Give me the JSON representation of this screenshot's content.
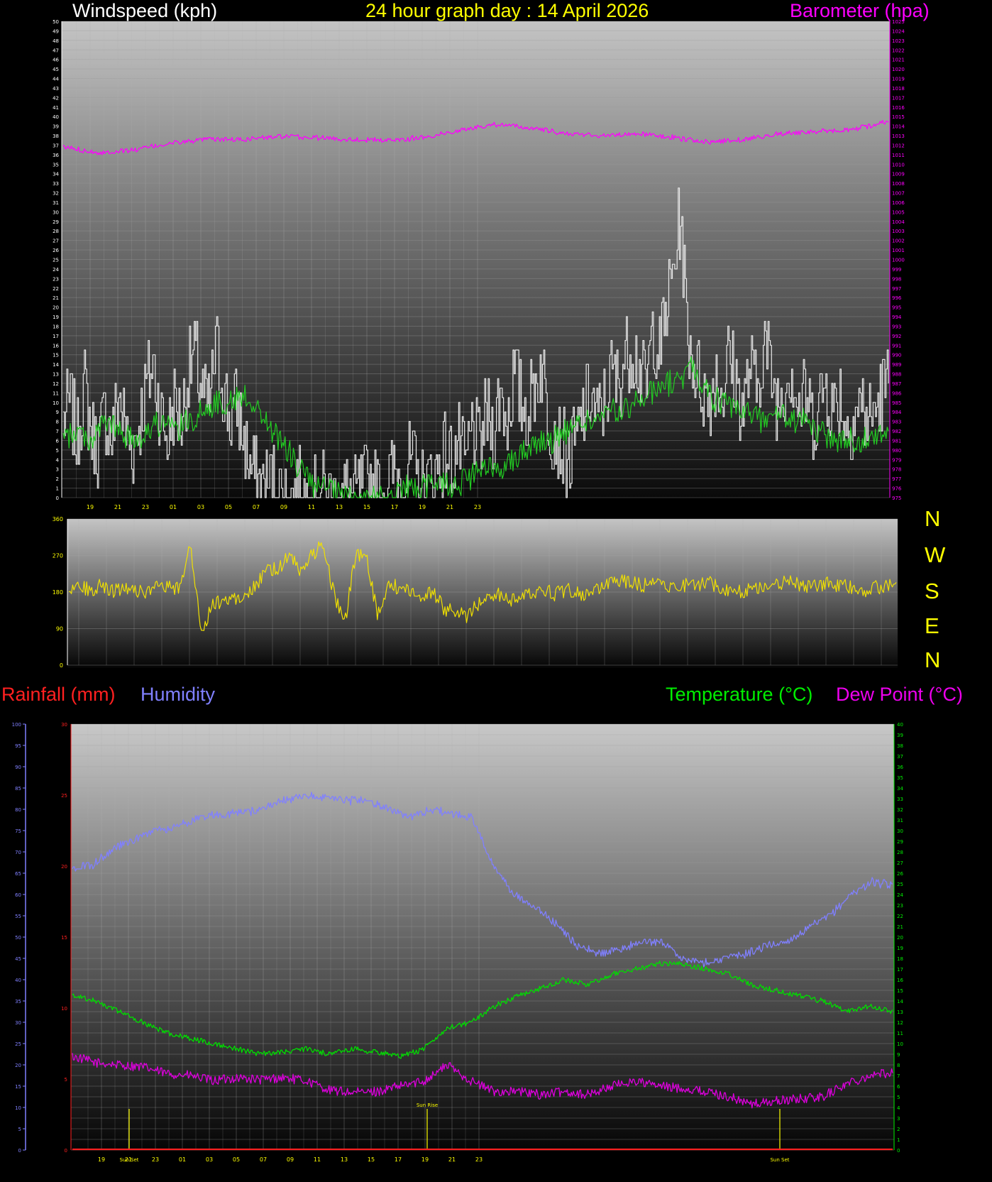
{
  "titles": {
    "windspeed": "Windspeed (kph)",
    "day": "24 hour graph day : 14 April 2026",
    "barometer": "Barometer (hpa)",
    "rainfall": "Rainfall (mm)",
    "humidity": "Humidity",
    "temperature": "Temperature (°C)",
    "dewpoint": "Dew Point (°C)"
  },
  "compass": [
    "N",
    "W",
    "S",
    "E",
    "N"
  ],
  "colors": {
    "wind": "#e8e8e8",
    "wind_avg": "#22cc22",
    "barometer": "#ff00ff",
    "direction": "#f0e000",
    "rain": "#ff2020",
    "humidity": "#8080ff",
    "temperature": "#00dd00",
    "dewpoint": "#dd00dd",
    "sun": "#ffff00"
  },
  "chart_data": [
    {
      "type": "line",
      "x_ticks": [
        "19",
        "21",
        "23",
        "01",
        "03",
        "05",
        "07",
        "09",
        "11",
        "13",
        "15",
        "17",
        "19",
        "21",
        "23"
      ],
      "ylim": [
        0,
        50
      ],
      "y2lim": [
        975,
        1025
      ],
      "series": [
        {
          "name": "Windspeed (kph)",
          "axis": "y",
          "step": 0.5,
          "values": [
            8,
            10,
            6,
            12,
            7,
            5,
            9,
            6,
            11,
            7,
            5,
            8,
            12,
            14,
            9,
            6,
            10,
            8,
            13,
            15,
            11,
            9,
            16,
            12,
            8,
            10,
            6,
            3,
            2,
            1,
            2,
            1,
            0,
            0,
            1,
            0,
            0,
            1,
            0,
            0,
            0,
            1,
            0,
            1,
            2,
            1,
            0,
            2,
            3,
            1,
            4,
            2,
            1,
            2,
            3,
            5,
            4,
            6,
            3,
            8,
            5,
            9,
            7,
            11,
            8,
            13,
            10,
            9,
            12,
            14,
            8,
            7,
            5,
            4,
            6,
            9,
            11,
            8,
            10,
            13,
            12,
            15,
            16,
            14,
            11,
            18,
            15,
            20,
            24,
            30,
            17,
            14,
            12,
            10,
            13,
            11,
            15,
            12,
            9,
            14,
            11,
            17,
            13,
            10,
            12,
            14,
            9,
            11,
            8,
            10,
            12,
            9,
            11,
            7,
            9,
            10,
            8,
            9,
            11,
            12
          ]
        },
        {
          "name": "Wind average",
          "axis": "y",
          "step": 0.2,
          "values": [
            6,
            7,
            6,
            8,
            7,
            6,
            7,
            8,
            7,
            8,
            9,
            10,
            10,
            11,
            9,
            7,
            5,
            3,
            1,
            1,
            0,
            0,
            0,
            0,
            1,
            1,
            1,
            2,
            1,
            2,
            3,
            3,
            4,
            5,
            6,
            6,
            7,
            8,
            8,
            9,
            9,
            10,
            11,
            12,
            12,
            14,
            11,
            10,
            9,
            9,
            8,
            9,
            8,
            8,
            7,
            6,
            6,
            6,
            7,
            6
          ]
        },
        {
          "name": "Barometer (hpa)",
          "axis": "y2",
          "step": 0.1,
          "values": [
            1011.8,
            1011.2,
            1011.5,
            1012.2,
            1012.6,
            1012.6,
            1012.9,
            1012.8,
            1012.6,
            1012.5,
            1012.8,
            1013.5,
            1014.2,
            1013.8,
            1013.2,
            1013.0,
            1013.2,
            1012.8,
            1012.3,
            1012.6,
            1013.2,
            1013.4,
            1013.6,
            1014.5
          ]
        }
      ]
    },
    {
      "type": "line",
      "yticks": [
        0,
        90,
        180,
        270,
        360
      ],
      "ylim": [
        0,
        360
      ],
      "series": [
        {
          "name": "Wind direction",
          "step": 0.25,
          "values": [
            190,
            195,
            185,
            200,
            180,
            195,
            188,
            175,
            190,
            192,
            185,
            300,
            80,
            150,
            160,
            165,
            170,
            200,
            230,
            240,
            270,
            230,
            270,
            300,
            180,
            100,
            275,
            260,
            120,
            200,
            190,
            180,
            170,
            180,
            140,
            130,
            120,
            150,
            170,
            175,
            160,
            165,
            180,
            190,
            175,
            185,
            180,
            170,
            190,
            200,
            210,
            205,
            195,
            215,
            200,
            190,
            200,
            195,
            205,
            190,
            185,
            180,
            190,
            195,
            200,
            205,
            200,
            190,
            198,
            200,
            195,
            190,
            185,
            190,
            195,
            200
          ]
        }
      ]
    },
    {
      "type": "line",
      "x_ticks": [
        "19",
        "21",
        "23",
        "01",
        "03",
        "05",
        "07",
        "09",
        "11",
        "13",
        "15",
        "17",
        "19",
        "21",
        "23"
      ],
      "markers": [
        "Sun Set",
        "Sun Rise",
        "Sun Set"
      ],
      "humidity_ticks": [
        0,
        5,
        10,
        15,
        20,
        25,
        30,
        35,
        40,
        45,
        50,
        55,
        60,
        65,
        70,
        75,
        80,
        85,
        90,
        95,
        100
      ],
      "rain_ticks": [
        0,
        5,
        10,
        15,
        20,
        25,
        30
      ],
      "temp_ticks": [
        0,
        1,
        2,
        3,
        4,
        5,
        6,
        7,
        8,
        9,
        10,
        11,
        12,
        13,
        14,
        15,
        16,
        17,
        18,
        19,
        20,
        21,
        22,
        23,
        24,
        25,
        26,
        27,
        28,
        29,
        30,
        31,
        32,
        33,
        34,
        35,
        36,
        37,
        38,
        39,
        40
      ],
      "rain_ylim": [
        0,
        30
      ],
      "humidity_ylim": [
        0,
        100
      ],
      "temp_ylim": [
        0,
        40
      ],
      "series": [
        {
          "name": "Rainfall (mm)",
          "axis": "rain",
          "step": 1,
          "values": [
            0,
            0,
            0,
            0,
            0,
            0,
            0,
            0,
            0,
            0,
            0,
            0,
            0,
            0,
            0,
            0,
            0,
            0,
            0,
            0,
            0,
            0,
            0,
            0,
            0
          ]
        },
        {
          "name": "Humidity",
          "axis": "humidity",
          "step": 0.5,
          "values": [
            66,
            67,
            71,
            73,
            75,
            76,
            78,
            79,
            79,
            80,
            82,
            83,
            83,
            82,
            82,
            80,
            78,
            80,
            79,
            78,
            67,
            60,
            57,
            53,
            48,
            46,
            47,
            49,
            49,
            45,
            44,
            45,
            46,
            48,
            49,
            52,
            55,
            60,
            63,
            62
          ]
        },
        {
          "name": "Temperature (°C)",
          "axis": "temp",
          "step": 0.5,
          "values": [
            14.5,
            14.0,
            13.0,
            12.0,
            11.0,
            10.5,
            10.0,
            9.5,
            9.0,
            9.2,
            9.5,
            9.0,
            9.5,
            9.2,
            8.8,
            9.5,
            11.5,
            12.0,
            13.5,
            14.5,
            15.2,
            16.0,
            15.5,
            16.5,
            17.0,
            17.5,
            17.5,
            17.0,
            16.5,
            15.5,
            15.0,
            14.5,
            14.0,
            13.0,
            13.5,
            13.0
          ]
        },
        {
          "name": "Dew Point (°C)",
          "axis": "temp",
          "step": 0.5,
          "values": [
            8.8,
            8.2,
            8.0,
            7.8,
            7.2,
            7.0,
            6.5,
            6.8,
            6.6,
            6.8,
            6.5,
            5.6,
            5.4,
            5.5,
            6.0,
            6.5,
            8.0,
            6.5,
            5.5,
            5.5,
            5.2,
            5.5,
            5.2,
            6.0,
            6.5,
            6.0,
            5.8,
            5.5,
            5.0,
            4.3,
            4.6,
            4.8,
            5.0,
            6.2,
            7.0,
            7.3
          ]
        }
      ]
    }
  ]
}
